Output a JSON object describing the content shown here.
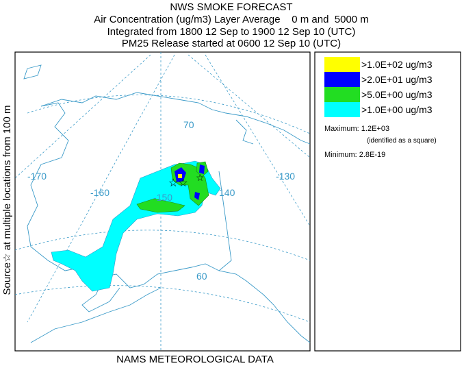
{
  "header": {
    "title": "NWS SMOKE FORECAST",
    "lines": [
      "Air Concentration (ug/m3) Layer Average    0 m and  5000 m",
      "Integrated from 1800 12 Sep to 1900 12 Sep 10 (UTC)",
      "PM25 Release started at 0600 12 Sep 10 (UTC)"
    ]
  },
  "side_label": "Source☆ at multiple locations from 100 m",
  "footer": "NAMS METEOROLOGICAL DATA",
  "legend": {
    "entries": [
      {
        "label": ">1.0E+02 ug/m3",
        "color": "#ffff00"
      },
      {
        "label": ">2.0E+01 ug/m3",
        "color": "#0000ff"
      },
      {
        "label": ">5.0E+00 ug/m3",
        "color": "#22dd22"
      },
      {
        "label": ">1.0E+00 ug/m3",
        "color": "#00ffff"
      }
    ],
    "maximum": "Maximum: 1.2E+03",
    "maximum_note": "(identified as a square)",
    "minimum": "Minimum: 2.8E-19"
  },
  "map": {
    "labels": [
      "-170",
      "-160",
      "-150",
      "140",
      "-130",
      "70",
      "60"
    ]
  }
}
